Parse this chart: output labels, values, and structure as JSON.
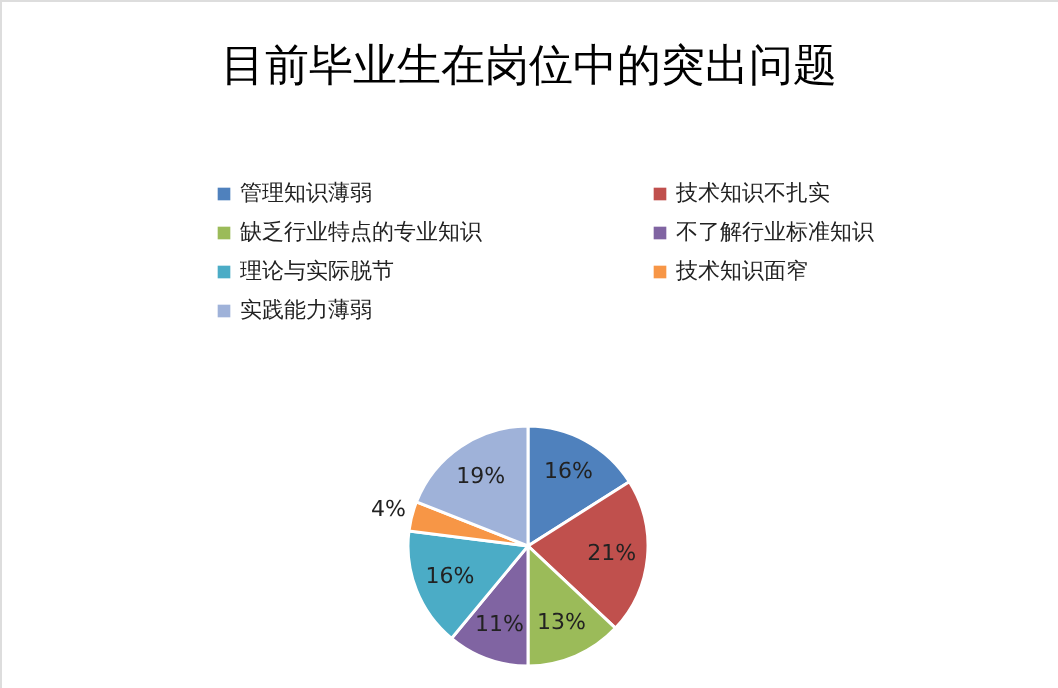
{
  "chart_data": {
    "type": "pie",
    "title": "目前毕业生在岗位中的突出问题",
    "categories": [
      "管理知识薄弱",
      "技术知识不扎实",
      "缺乏行业特点的专业知识",
      "不了解行业标准知识",
      "理论与实际脱节",
      "技术知识面窄",
      "实践能力薄弱"
    ],
    "values": [
      16,
      21,
      13,
      11,
      16,
      4,
      19
    ],
    "colors": [
      "#4f81bd",
      "#c0504d",
      "#9bbb59",
      "#8064a2",
      "#4bacc6",
      "#f79646",
      "#9fb2d9"
    ],
    "value_labels": [
      "16%",
      "21%",
      "13%",
      "11%",
      "16%",
      "4%",
      "19%"
    ],
    "legend": "top"
  }
}
